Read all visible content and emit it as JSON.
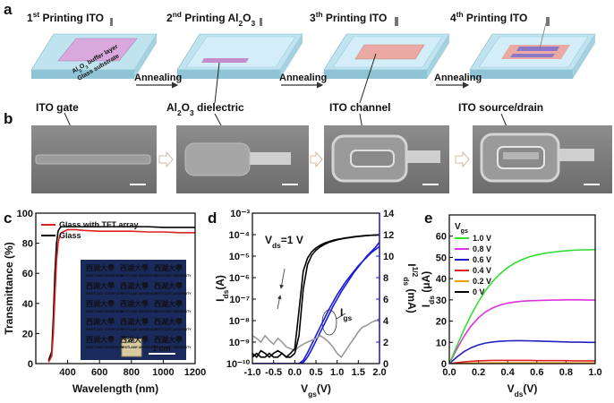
{
  "panel_labels": [
    "a",
    "b",
    "c",
    "d",
    "e"
  ],
  "steps": [
    {
      "title": [
        {
          "text": "1"
        },
        {
          "text": "st",
          "pos": "super"
        },
        {
          "text": " Printing ITO"
        }
      ],
      "label": "ITO gate"
    },
    {
      "title": [
        {
          "text": "2"
        },
        {
          "text": "nd",
          "pos": "super"
        },
        {
          "text": " Printing Al"
        },
        {
          "text": "2",
          "pos": "sub"
        },
        {
          "text": "O"
        },
        {
          "text": "3",
          "pos": "sub"
        }
      ],
      "label": [
        {
          "text": "Al"
        },
        {
          "text": "2",
          "pos": "sub"
        },
        {
          "text": "O"
        },
        {
          "text": "3",
          "pos": "sub"
        },
        {
          "text": " dielectric"
        }
      ]
    },
    {
      "title": [
        {
          "text": "3"
        },
        {
          "text": "th",
          "pos": "super"
        },
        {
          "text": " Printing ITO"
        }
      ],
      "label": "ITO channel"
    },
    {
      "title": [
        {
          "text": "4"
        },
        {
          "text": "th",
          "pos": "super"
        },
        {
          "text": " Printing ITO"
        }
      ],
      "label": "ITO source/drain"
    }
  ],
  "annealing": [
    "Annealing",
    "Annealing",
    "Annealing"
  ],
  "layer_labels": {
    "buffer": [
      {
        "text": "Al"
      },
      {
        "text": "2",
        "pos": "sub"
      },
      {
        "text": "O"
      },
      {
        "text": "3",
        "pos": "sub"
      },
      {
        "text": " buffer layer"
      }
    ],
    "substrate": "Glass substrate"
  },
  "inset": {
    "logo_cn": "西湖大學",
    "logo_en": "WESTLAKE UNIVERSITY",
    "scale": "1 cm"
  },
  "chart_data": [
    {
      "type": "line",
      "xlabel": "Wavelength (nm)",
      "ylabel": "Transmittance (%)",
      "legend": "upper left",
      "x": [
        280,
        300,
        310,
        320,
        330,
        340,
        350,
        360,
        380,
        400,
        450,
        500,
        600,
        700,
        800,
        900,
        1000,
        1100,
        1200
      ],
      "series": [
        {
          "name": "Glass with TFT array",
          "color": "#e02020",
          "values": [
            1,
            5,
            20,
            45,
            68,
            80,
            85,
            87,
            88,
            89,
            89,
            88.5,
            88,
            88,
            88,
            87.5,
            87.5,
            87,
            87
          ]
        },
        {
          "name": "Glass",
          "color": "#000000",
          "values": [
            2,
            8,
            30,
            60,
            80,
            88,
            90,
            91,
            91,
            91,
            91,
            91,
            91,
            91,
            91,
            91,
            90.5,
            90.5,
            90.5
          ]
        }
      ],
      "xlim": [
        200,
        1200
      ],
      "ylim": [
        0,
        100
      ],
      "xticks": [
        400,
        600,
        800,
        1000,
        1200
      ],
      "yticks": [
        0,
        20,
        40,
        60,
        80,
        100
      ]
    },
    {
      "type": "line",
      "yscale": "log",
      "xlabel": [
        {
          "text": "V"
        },
        {
          "text": "gs",
          "pos": "sub"
        },
        {
          "text": "(V)"
        }
      ],
      "ylabel": [
        {
          "text": "I"
        },
        {
          "text": "ds",
          "pos": "sub"
        },
        {
          "text": "(A)"
        }
      ],
      "y2label": [
        {
          "text": "I"
        },
        {
          "text": "1/2",
          "pos": "super"
        },
        {
          "text": "ds",
          "pos": "sub"
        },
        {
          "text": " (mA)"
        }
      ],
      "annotations": [
        [
          {
            "text": "V"
          },
          {
            "text": "ds",
            "pos": "sub"
          },
          {
            "text": "=1 V"
          }
        ],
        [
          {
            "text": "I"
          },
          {
            "text": "gs",
            "pos": "sub"
          }
        ]
      ],
      "x": [
        -1,
        -0.9,
        -0.8,
        -0.7,
        -0.6,
        -0.5,
        -0.4,
        -0.3,
        -0.2,
        -0.1,
        0,
        0.1,
        0.2,
        0.3,
        0.4,
        0.5,
        0.6,
        0.7,
        0.8,
        0.9,
        1,
        1.1,
        1.2,
        1.3,
        1.4,
        1.5,
        1.6,
        1.7,
        1.8,
        1.9,
        2
      ],
      "series": [
        {
          "color": "#000000",
          "values": [
            3e-10,
            2e-10,
            4e-10,
            3e-10,
            2e-10,
            3e-10,
            4e-10,
            3e-10,
            2e-10,
            3e-10,
            5e-10,
            3e-08,
            2e-06,
            8e-06,
            1.6e-05,
            2.4e-05,
            3.2e-05,
            4e-05,
            4.7e-05,
            5.4e-05,
            6e-05,
            6.5e-05,
            7e-05,
            7.5e-05,
            8e-05,
            8.4e-05,
            8.8e-05,
            9.1e-05,
            9.4e-05,
            9.6e-05,
            9.8e-05
          ]
        },
        {
          "color": "#000000",
          "values": [
            2e-10,
            3e-10,
            2e-10,
            2e-10,
            3e-10,
            2e-10,
            2e-10,
            3e-10,
            2e-10,
            2e-10,
            3e-10,
            2e-09,
            3e-07,
            4e-06,
            1.1e-05,
            1.9e-05,
            2.7e-05,
            3.5e-05,
            4.3e-05,
            5e-05,
            5.7e-05,
            6.3e-05,
            6.8e-05,
            7.3e-05,
            7.8e-05,
            8.2e-05,
            8.6e-05,
            9e-05,
            9.3e-05,
            9.5e-05,
            9.7e-05
          ]
        },
        {
          "color": "#999999",
          "values": [
            2e-09,
            1.5e-09,
            1e-09,
            2e-09,
            1.2e-09,
            8e-10,
            1.5e-09,
            1e-09,
            6e-10,
            5e-10,
            4e-10,
            6e-10,
            8e-10,
            1e-09,
            1.2e-09,
            1.5e-09,
            2e-09,
            1.5e-09,
            1e-09,
            6e-10,
            3e-10,
            2e-10,
            4e-10,
            8e-10,
            1.5e-09,
            3e-09,
            5e-09,
            6e-09,
            8e-09,
            1e-08,
            1.2e-08
          ]
        },
        {
          "color": "#1a1adc",
          "axis": "y2",
          "values": [
            0,
            0,
            0,
            0,
            0,
            0,
            0,
            0,
            0,
            0,
            0,
            0,
            0.3,
            1.0,
            1.8,
            2.6,
            3.4,
            4.2,
            5.0,
            5.7,
            6.4,
            7.0,
            7.6,
            8.1,
            8.6,
            9.1,
            9.5,
            9.9,
            10.3,
            10.6,
            10.9
          ]
        },
        {
          "color": "#1a1adc",
          "axis": "y2",
          "values": [
            0,
            0,
            0,
            0,
            0,
            0,
            0,
            0,
            0,
            0,
            0,
            0,
            0.1,
            0.6,
            1.3,
            2.1,
            2.9,
            3.7,
            4.5,
            5.3,
            6.0,
            6.7,
            7.3,
            7.9,
            8.5,
            9.0,
            9.5,
            10.0,
            10.4,
            10.8,
            11.3
          ]
        }
      ],
      "xlim": [
        -1,
        2
      ],
      "ylim": [
        1e-10,
        0.001
      ],
      "y2lim": [
        0,
        14
      ],
      "xticks": [
        {
          "value": -1,
          "label": "-1.0"
        },
        -0.5,
        {
          "value": 0,
          "label": "0.0"
        },
        0.5,
        {
          "value": 1,
          "label": "1.0"
        },
        1.5,
        {
          "value": 2,
          "label": "2.0"
        }
      ],
      "yticks": [
        {
          "value": 1e-10,
          "label": "10⁻¹⁰"
        },
        {
          "value": 1e-09,
          "label": "10⁻⁹"
        },
        {
          "value": 1e-08,
          "label": "10⁻⁸"
        },
        {
          "value": 1e-07,
          "label": "10⁻⁷"
        },
        {
          "value": 1e-06,
          "label": "10⁻⁶"
        },
        {
          "value": 1e-05,
          "label": "10⁻⁵"
        },
        {
          "value": 0.0001,
          "label": "10⁻⁴"
        },
        {
          "value": 0.001,
          "label": "10⁻³"
        }
      ],
      "y2ticks": [
        0,
        2,
        4,
        6,
        8,
        10,
        12,
        14
      ],
      "y2color": "#1a1adc"
    },
    {
      "type": "line",
      "legend": "upper left",
      "xlabel": [
        {
          "text": "V"
        },
        {
          "text": "ds",
          "pos": "sub"
        },
        {
          "text": "(V)"
        }
      ],
      "ylabel": [
        {
          "text": "I"
        },
        {
          "text": "ds",
          "pos": "sub"
        },
        {
          "text": " (μA)"
        }
      ],
      "legend_title": [
        {
          "text": "V"
        },
        {
          "text": "gs",
          "pos": "sub"
        }
      ],
      "x": [
        0,
        0.05,
        0.1,
        0.15,
        0.2,
        0.25,
        0.3,
        0.35,
        0.4,
        0.45,
        0.5,
        0.55,
        0.6,
        0.65,
        0.7,
        0.75,
        0.8,
        0.85,
        0.9,
        0.95,
        1
      ],
      "series": [
        {
          "name": "1.0 V",
          "color": "#33dd33",
          "values": [
            0,
            8.1,
            15.9,
            23.0,
            29.2,
            34.6,
            38.9,
            42.4,
            45.2,
            47.4,
            49.0,
            50.3,
            51.2,
            51.9,
            52.4,
            52.8,
            53.1,
            53.4,
            53.5,
            53.6,
            53.7
          ]
        },
        {
          "name": "0.8 V",
          "color": "#dd33dd",
          "values": [
            0,
            6.7,
            12.8,
            17.8,
            21.6,
            24.4,
            26.3,
            27.6,
            28.5,
            29.0,
            29.4,
            29.6,
            29.7,
            29.8,
            29.9,
            29.9,
            30.0,
            30.0,
            30.0,
            29.9,
            29.9
          ]
        },
        {
          "name": "0.6 V",
          "color": "#2020c0",
          "values": [
            0,
            3.0,
            5.6,
            7.5,
            8.8,
            9.7,
            10.2,
            10.5,
            10.7,
            10.8,
            10.8,
            10.7,
            10.6,
            10.5,
            10.4,
            10.3,
            10.2,
            10.1,
            10.1,
            10.0,
            10.0
          ]
        },
        {
          "name": "0.4 V",
          "color": "#dd2020",
          "values": [
            0,
            0.4,
            0.8,
            1.1,
            1.3,
            1.4,
            1.5,
            1.5,
            1.5,
            1.5,
            1.5,
            1.5,
            1.4,
            1.4,
            1.4,
            1.4,
            1.4,
            1.3,
            1.3,
            1.3,
            1.3
          ]
        },
        {
          "name": "0.2 V",
          "color": "#e8a000",
          "values": [
            0,
            0.1,
            0.2,
            0.2,
            0.3,
            0.3,
            0.3,
            0.3,
            0.3,
            0.3,
            0.3,
            0.3,
            0.3,
            0.3,
            0.3,
            0.3,
            0.3,
            0.3,
            0.3,
            0.3,
            0.3
          ]
        },
        {
          "name": "0 V",
          "color": "#000000",
          "values": [
            0,
            0,
            0,
            0,
            0,
            0,
            0,
            0,
            0,
            0,
            0,
            0,
            0,
            0,
            0,
            0,
            0,
            0,
            0,
            0,
            0
          ]
        }
      ],
      "xlim": [
        0,
        1
      ],
      "ylim": [
        0,
        70
      ],
      "xticks": [
        {
          "value": 0,
          "label": "0.0"
        },
        0.2,
        0.4,
        0.6,
        0.8,
        {
          "value": 1,
          "label": "1.0"
        }
      ],
      "yticks": [
        0,
        10,
        20,
        30,
        40,
        50,
        60
      ]
    }
  ]
}
